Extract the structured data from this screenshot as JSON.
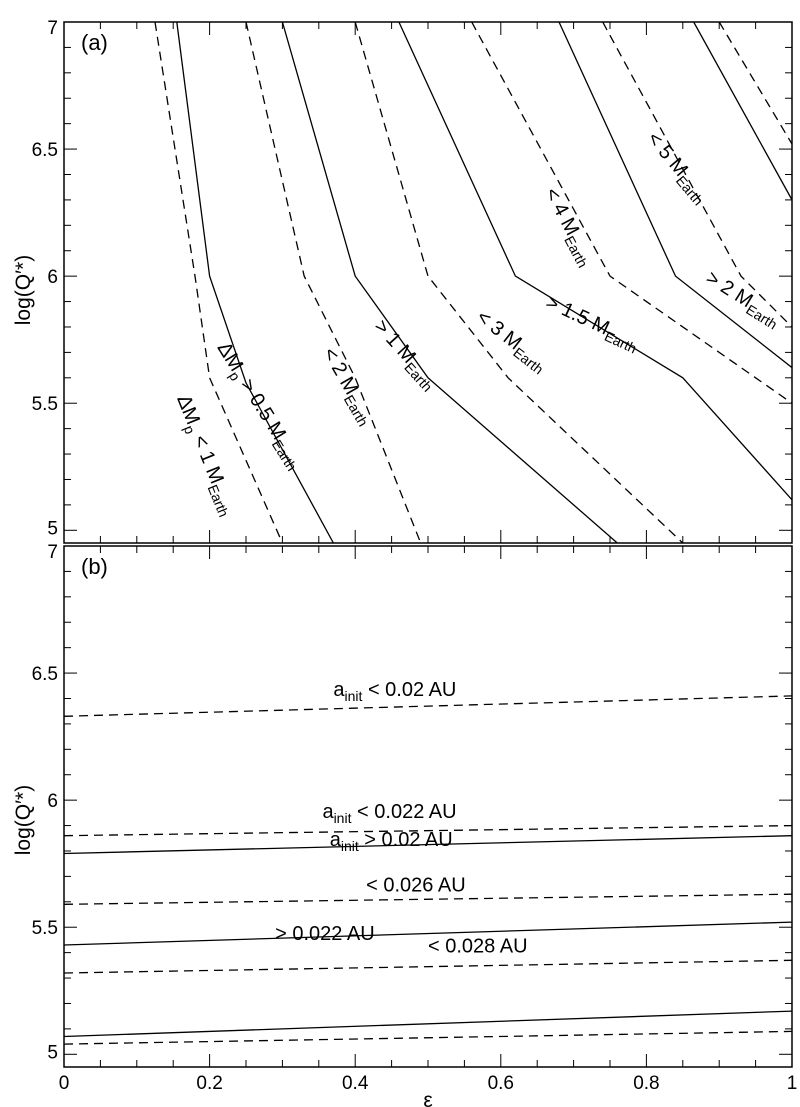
{
  "chart_data": [
    {
      "panel_label": "(a)",
      "type": "line",
      "xlabel": "",
      "ylabel": "log(Q′*)",
      "xlim": [
        0,
        1
      ],
      "ylim": [
        4.95,
        7
      ],
      "xticks": [
        0,
        0.2,
        0.4,
        0.6,
        0.8,
        1
      ],
      "xtick_labels": [],
      "yticks": [
        5,
        5.5,
        6,
        6.5,
        7
      ],
      "ytick_labels": [
        "5",
        "5.5",
        "6",
        "6.5",
        "7"
      ],
      "grid": false,
      "series": [
        {
          "style": "dashed",
          "points": [
            [
              0.125,
              7.0
            ],
            [
              0.18,
              6.0
            ],
            [
              0.2,
              5.6
            ],
            [
              0.3,
              4.95
            ]
          ]
        },
        {
          "style": "solid",
          "points": [
            [
              0.155,
              7.0
            ],
            [
              0.2,
              6.0
            ],
            [
              0.25,
              5.58
            ],
            [
              0.37,
              4.95
            ]
          ]
        },
        {
          "style": "dashed",
          "points": [
            [
              0.25,
              7.0
            ],
            [
              0.33,
              6.0
            ],
            [
              0.4,
              5.6
            ],
            [
              0.49,
              4.95
            ]
          ]
        },
        {
          "style": "solid",
          "points": [
            [
              0.3,
              7.0
            ],
            [
              0.4,
              6.0
            ],
            [
              0.5,
              5.6
            ],
            [
              0.76,
              4.95
            ]
          ]
        },
        {
          "style": "dashed",
          "points": [
            [
              0.4,
              7.0
            ],
            [
              0.5,
              6.0
            ],
            [
              0.61,
              5.6
            ],
            [
              0.85,
              4.95
            ]
          ]
        },
        {
          "style": "solid",
          "points": [
            [
              0.46,
              7.0
            ],
            [
              0.62,
              6.0
            ],
            [
              0.85,
              5.6
            ],
            [
              1.0,
              5.12
            ]
          ]
        },
        {
          "style": "dashed",
          "points": [
            [
              0.56,
              7.0
            ],
            [
              0.75,
              6.0
            ],
            [
              0.95,
              5.6
            ],
            [
              1.0,
              5.5
            ]
          ]
        },
        {
          "style": "solid",
          "points": [
            [
              0.68,
              7.0
            ],
            [
              0.84,
              6.0
            ],
            [
              1.0,
              5.64
            ]
          ]
        },
        {
          "style": "dashed",
          "points": [
            [
              0.74,
              7.0
            ],
            [
              0.93,
              6.0
            ],
            [
              1.0,
              5.8
            ]
          ]
        },
        {
          "style": "solid",
          "points": [
            [
              0.865,
              7.0
            ],
            [
              1.0,
              6.3
            ]
          ]
        },
        {
          "style": "dashed",
          "points": [
            [
              0.9,
              7.0
            ],
            [
              1.0,
              6.52
            ]
          ]
        }
      ],
      "annotations": [
        {
          "text": "ΔM",
          "sub": "p",
          "rest": " < 1 M",
          "sub2": "Earth",
          "at": [
            0.155,
            5.52
          ],
          "angle": 68
        },
        {
          "text": "ΔM",
          "sub": "p",
          "rest": " > 0.5 M",
          "sub2": "Earth",
          "at": [
            0.21,
            5.72
          ],
          "angle": 58
        },
        {
          "text": "< 2 M",
          "sub": "Earth",
          "at": [
            0.355,
            5.7
          ],
          "angle": 60
        },
        {
          "text": "> 1 M",
          "sub": "Earth",
          "at": [
            0.425,
            5.8
          ],
          "angle": 48
        },
        {
          "text": "< 3 M",
          "sub": "Earth",
          "at": [
            0.565,
            5.83
          ],
          "angle": 38
        },
        {
          "text": "> 1.5 M",
          "sub": "Earth",
          "at": [
            0.66,
            5.88
          ],
          "angle": 25
        },
        {
          "text": "< 4 M",
          "sub": "Earth",
          "at": [
            0.66,
            6.33
          ],
          "angle": 62
        },
        {
          "text": "< 5 M",
          "sub": "Earth",
          "at": [
            0.8,
            6.54
          ],
          "angle": 50
        },
        {
          "text": "> 2 M",
          "sub": "Earth",
          "at": [
            0.88,
            5.98
          ],
          "angle": 32
        }
      ]
    },
    {
      "panel_label": "(b)",
      "type": "line",
      "xlabel": "ε",
      "ylabel": "log(Q′*)",
      "xlim": [
        0,
        1
      ],
      "ylim": [
        4.95,
        7
      ],
      "xticks": [
        0,
        0.2,
        0.4,
        0.6,
        0.8,
        1
      ],
      "xtick_labels": [
        "0",
        "0.2",
        "0.4",
        "0.6",
        "0.8",
        "1"
      ],
      "yticks": [
        5,
        5.5,
        6,
        6.5,
        7
      ],
      "ytick_labels": [
        "5",
        "5.5",
        "6",
        "6.5",
        "7"
      ],
      "grid": false,
      "series": [
        {
          "style": "dashed",
          "points": [
            [
              0,
              6.33
            ],
            [
              1,
              6.41
            ]
          ]
        },
        {
          "style": "dashed",
          "points": [
            [
              0,
              5.86
            ],
            [
              1,
              5.9
            ]
          ]
        },
        {
          "style": "solid",
          "points": [
            [
              0,
              5.79
            ],
            [
              1,
              5.86
            ]
          ]
        },
        {
          "style": "dashed",
          "points": [
            [
              0,
              5.59
            ],
            [
              1,
              5.63
            ]
          ]
        },
        {
          "style": "solid",
          "points": [
            [
              0,
              5.43
            ],
            [
              1,
              5.52
            ]
          ]
        },
        {
          "style": "dashed",
          "points": [
            [
              0,
              5.32
            ],
            [
              1,
              5.37
            ]
          ]
        },
        {
          "style": "solid",
          "points": [
            [
              0,
              5.07
            ],
            [
              1,
              5.17
            ]
          ]
        },
        {
          "style": "dashed",
          "points": [
            [
              0,
              5.04
            ],
            [
              1,
              5.09
            ]
          ]
        }
      ],
      "annotations": [
        {
          "text": "a",
          "sub": "init",
          "rest": " < 0.02 AU",
          "at": [
            0.37,
            6.41
          ]
        },
        {
          "text": "a",
          "sub": "init",
          "rest": " < 0.022 AU",
          "at": [
            0.355,
            5.93
          ]
        },
        {
          "text": "a",
          "sub": "init",
          "rest": " > 0.02 AU",
          "at": [
            0.365,
            5.82
          ]
        },
        {
          "text": "< 0.026 AU",
          "at": [
            0.415,
            5.64
          ]
        },
        {
          "text": "> 0.022 AU",
          "at": [
            0.29,
            5.45
          ]
        },
        {
          "text": "< 0.028 AU",
          "at": [
            0.5,
            5.4
          ]
        }
      ]
    }
  ]
}
